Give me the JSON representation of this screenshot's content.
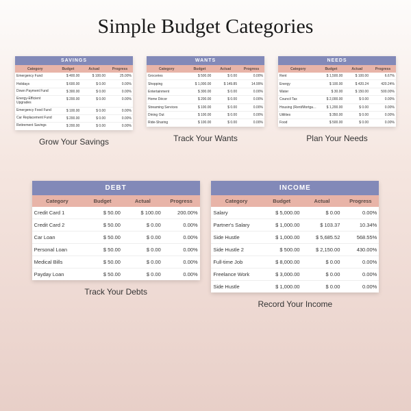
{
  "title": "Simple Budget Categories",
  "columns": [
    "Category",
    "Budget",
    "Actual",
    "Progress"
  ],
  "colors": {
    "title_bg": "#8289b8",
    "header_bg": "#e8b4a8",
    "card_bg": "#ffffff"
  },
  "cards": {
    "savings": {
      "title": "SAVINGS",
      "caption": "Grow Your Savings",
      "rows": [
        {
          "cat": "Emergency Fund",
          "b": "$    400.00",
          "a": "$    100.00",
          "p": "25.00%"
        },
        {
          "cat": "Holidays",
          "b": "$    600.00",
          "a": "$    0.00",
          "p": "0.00%"
        },
        {
          "cat": "Down Payment Fund",
          "b": "$    300.00",
          "a": "$    0.00",
          "p": "0.00%"
        },
        {
          "cat": "Energy-Efficient Upgrades",
          "b": "$    200.00",
          "a": "$    0.00",
          "p": "0.00%"
        },
        {
          "cat": "Emergency Food Fund",
          "b": "$    100.00",
          "a": "$    0.00",
          "p": "0.00%"
        },
        {
          "cat": "Car Replacement Fund",
          "b": "$    200.00",
          "a": "$    0.00",
          "p": "0.00%"
        },
        {
          "cat": "Retirement Savings",
          "b": "$    200.00",
          "a": "$    0.00",
          "p": "0.00%"
        }
      ]
    },
    "wants": {
      "title": "WANTS",
      "caption": "Track Your Wants",
      "rows": [
        {
          "cat": "Groceries",
          "b": "$    500.00",
          "a": "$    0.00",
          "p": "0.00%"
        },
        {
          "cat": "Shopping",
          "b": "$    1,000.00",
          "a": "$    149.85",
          "p": "14.99%"
        },
        {
          "cat": "Entertainment",
          "b": "$    300.00",
          "a": "$    0.00",
          "p": "0.00%"
        },
        {
          "cat": "Home Décor",
          "b": "$    200.00",
          "a": "$    0.00",
          "p": "0.00%"
        },
        {
          "cat": "Streaming Services",
          "b": "$    100.00",
          "a": "$    0.00",
          "p": "0.00%"
        },
        {
          "cat": "Dining Out",
          "b": "$    100.00",
          "a": "$    0.00",
          "p": "0.00%"
        },
        {
          "cat": "Ride-Sharing",
          "b": "$    100.00",
          "a": "$    0.00",
          "p": "0.00%"
        }
      ]
    },
    "needs": {
      "title": "NEEDS",
      "caption": "Plan Your Needs",
      "rows": [
        {
          "cat": "Rent",
          "b": "$    1,500.00",
          "a": "$    100.00",
          "p": "6.67%"
        },
        {
          "cat": "Energy",
          "b": "$    100.00",
          "a": "$    420.24",
          "p": "420.24%"
        },
        {
          "cat": "Water",
          "b": "$    30.00",
          "a": "$    150.00",
          "p": "500.00%"
        },
        {
          "cat": "Council Tax",
          "b": "$    2,000.00",
          "a": "$    0.00",
          "p": "0.00%"
        },
        {
          "cat": "Housing (Rent/Mortgage)",
          "b": "$    1,200.00",
          "a": "$    0.00",
          "p": "0.00%"
        },
        {
          "cat": "Utilities",
          "b": "$    350.00",
          "a": "$    0.00",
          "p": "0.00%"
        },
        {
          "cat": "Food",
          "b": "$    500.00",
          "a": "$    0.00",
          "p": "0.00%"
        }
      ]
    },
    "debt": {
      "title": "DEBT",
      "caption": "Track Your Debts",
      "rows": [
        {
          "cat": "Credit Card 1",
          "b": "$    50.00",
          "a": "$    100.00",
          "p": "200.00%"
        },
        {
          "cat": "Credit Card 2",
          "b": "$    50.00",
          "a": "$    0.00",
          "p": "0.00%"
        },
        {
          "cat": "Car Loan",
          "b": "$    50.00",
          "a": "$    0.00",
          "p": "0.00%"
        },
        {
          "cat": "Personal Loan",
          "b": "$    50.00",
          "a": "$    0.00",
          "p": "0.00%"
        },
        {
          "cat": "Medical Bills",
          "b": "$    50.00",
          "a": "$    0.00",
          "p": "0.00%"
        },
        {
          "cat": "Payday Loan",
          "b": "$    50.00",
          "a": "$    0.00",
          "p": "0.00%"
        }
      ]
    },
    "income": {
      "title": "INCOME",
      "caption": "Record Your Income",
      "rows": [
        {
          "cat": "Salary",
          "b": "$    5,000.00",
          "a": "$    0.00",
          "p": "0.00%"
        },
        {
          "cat": "Partner's Salary",
          "b": "$    1,000.00",
          "a": "$    103.37",
          "p": "10.34%"
        },
        {
          "cat": "Side Hustle",
          "b": "$    1,000.00",
          "a": "$    5,685.52",
          "p": "568.55%"
        },
        {
          "cat": "Side Hustle 2",
          "b": "$    500.00",
          "a": "$    2,150.00",
          "p": "430.00%"
        },
        {
          "cat": "Full-time Job",
          "b": "$    8,000.00",
          "a": "$    0.00",
          "p": "0.00%"
        },
        {
          "cat": "Freelance Work",
          "b": "$    3,000.00",
          "a": "$    0.00",
          "p": "0.00%"
        },
        {
          "cat": "Side Hustle",
          "b": "$    1,000.00",
          "a": "$    0.00",
          "p": "0.00%"
        }
      ]
    }
  }
}
